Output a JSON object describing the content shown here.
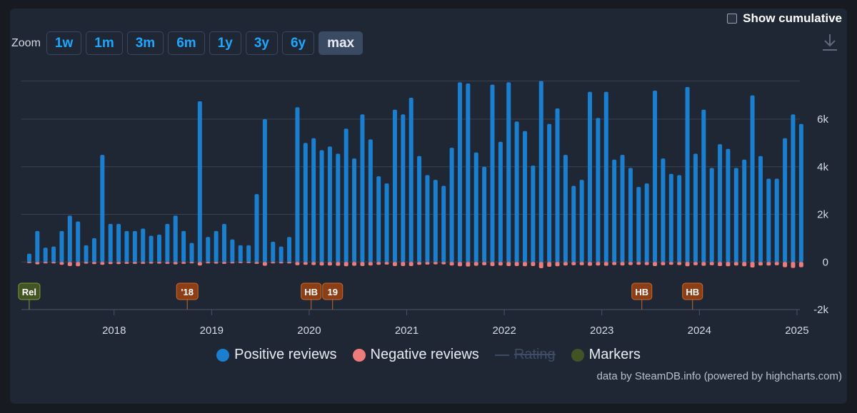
{
  "controls": {
    "show_cumulative_label": "Show cumulative",
    "zoom_label": "Zoom",
    "zoom_buttons": [
      "1w",
      "1m",
      "3m",
      "6m",
      "1y",
      "3y",
      "6y",
      "max"
    ],
    "active_zoom": "max",
    "download_icon": "download-icon"
  },
  "credits": "data by SteamDB.info (powered by highcharts.com)",
  "colors": {
    "positive": "#1b7fd0",
    "negative": "#ef7b7b",
    "rating": "#3a4b66",
    "markers": "#435424",
    "marker_orange": "#8c3f17",
    "marker_green": "#445525",
    "grid": "#3a4254",
    "axis_text": "#d6dbe3",
    "background": "#1f2634"
  },
  "chart_data": {
    "type": "bar",
    "title": "",
    "xlabel": "",
    "ylabel": "",
    "ylim": [
      -2000,
      7800
    ],
    "y_ticks": [
      "-2k",
      "0",
      "2k",
      "4k",
      "6k"
    ],
    "y_tick_values": [
      -2000,
      0,
      2000,
      4000,
      6000
    ],
    "x_ticks": [
      "2018",
      "2019",
      "2020",
      "2021",
      "2022",
      "2023",
      "2024",
      "2025"
    ],
    "x_tick_values": [
      2018.0,
      2019.0,
      2020.0,
      2021.0,
      2022.0,
      2023.0,
      2024.0,
      2025.0
    ],
    "x_range": [
      2017.05,
      2025.03
    ],
    "first_period": 2017.13,
    "period_step": 0.0833,
    "legend": [
      "Positive reviews",
      "Negative reviews",
      "Rating",
      "Markers"
    ],
    "legend_disabled": [
      "Rating"
    ],
    "series": [
      {
        "name": "Positive reviews",
        "values": [
          350,
          1300,
          600,
          650,
          1300,
          1950,
          1700,
          700,
          1000,
          4500,
          1600,
          1600,
          1300,
          1300,
          1400,
          1100,
          1150,
          1600,
          1950,
          1300,
          800,
          6750,
          1050,
          1300,
          1600,
          950,
          700,
          700,
          2850,
          6000,
          850,
          650,
          1050,
          6500,
          5000,
          5200,
          4700,
          4850,
          4550,
          5600,
          4350,
          6200,
          5150,
          3600,
          3300,
          6400,
          6200,
          6900,
          4450,
          3650,
          3450,
          3200,
          4800,
          7550,
          7500,
          4600,
          4000,
          7450,
          5050,
          7550,
          5900,
          5500,
          4050,
          7600,
          5800,
          6450,
          4500,
          3200,
          3450,
          7150,
          6050,
          7150,
          4300,
          4500,
          3950,
          3150,
          3300,
          7200,
          4350,
          3700,
          3650,
          7350,
          4550,
          6400,
          3950,
          4950,
          4750,
          3950,
          4300,
          7000,
          4450,
          3500,
          3500,
          5200,
          6200,
          5800
        ]
      },
      {
        "name": "Negative reviews",
        "values": [
          -50,
          -100,
          -60,
          -60,
          -120,
          -170,
          -180,
          -70,
          -90,
          -120,
          -90,
          -90,
          -80,
          -80,
          -80,
          -70,
          -70,
          -80,
          -100,
          -80,
          -60,
          -150,
          -60,
          -70,
          -80,
          -60,
          -50,
          -50,
          -80,
          -160,
          -60,
          -60,
          -60,
          -140,
          -120,
          -130,
          -150,
          -150,
          -160,
          -180,
          -160,
          -170,
          -150,
          -120,
          -110,
          -170,
          -170,
          -170,
          -120,
          -110,
          -100,
          -100,
          -150,
          -180,
          -190,
          -160,
          -140,
          -170,
          -150,
          -170,
          -170,
          -180,
          -170,
          -260,
          -200,
          -180,
          -150,
          -140,
          -140,
          -160,
          -150,
          -160,
          -130,
          -150,
          -130,
          -120,
          -130,
          -170,
          -140,
          -120,
          -130,
          -180,
          -140,
          -160,
          -140,
          -170,
          -180,
          -150,
          -180,
          -230,
          -150,
          -150,
          -140,
          -220,
          -250,
          -220
        ]
      }
    ],
    "markers": [
      {
        "label": "Rel",
        "x": 2017.13,
        "kind": "green"
      },
      {
        "label": "'18",
        "x": 2018.75,
        "kind": "orange"
      },
      {
        "label": "HB",
        "x": 2020.02,
        "kind": "orange"
      },
      {
        "label": "19",
        "x": 2020.24,
        "kind": "orange"
      },
      {
        "label": "HB",
        "x": 2023.41,
        "kind": "orange"
      },
      {
        "label": "HB",
        "x": 2023.93,
        "kind": "orange"
      }
    ]
  }
}
